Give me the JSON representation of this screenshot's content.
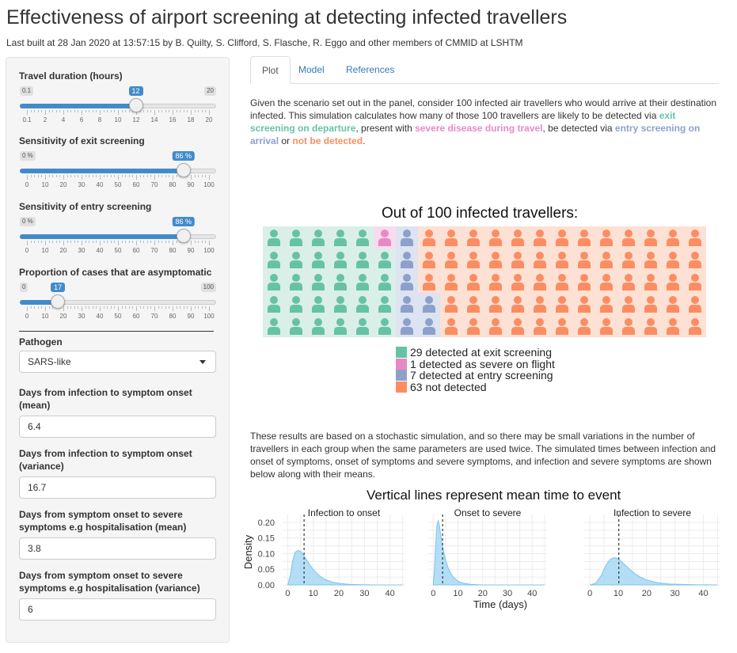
{
  "page": {
    "title": "Effectiveness of airport screening at detecting infected travellers",
    "subtitle": "Last built at 28 Jan 2020 at 13:57:15 by B. Quilty, S. Clifford, S. Flasche, R. Eggo and other members of CMMID at LSHTM"
  },
  "sidebar": {
    "sliders": [
      {
        "label": "Travel duration (hours)",
        "min": 0.1,
        "max": 20,
        "value": 12,
        "value_label": "12",
        "min_label": "0.1",
        "max_label": "20",
        "tick_labels": [
          "0.1",
          "2",
          "4",
          "6",
          "8",
          "10",
          "12",
          "14",
          "16",
          "18",
          "20"
        ]
      },
      {
        "label": "Sensitivity of exit screening",
        "min": 0,
        "max": 100,
        "value": 86,
        "value_label": "86 %",
        "min_label": "0 %",
        "max_label": "",
        "tick_labels": [
          "0",
          "10",
          "20",
          "30",
          "40",
          "50",
          "60",
          "70",
          "80",
          "90",
          "100"
        ]
      },
      {
        "label": "Sensitivity of entry screening",
        "min": 0,
        "max": 100,
        "value": 86,
        "value_label": "86 %",
        "min_label": "0 %",
        "max_label": "",
        "tick_labels": [
          "0",
          "10",
          "20",
          "30",
          "40",
          "50",
          "60",
          "70",
          "80",
          "90",
          "100"
        ]
      },
      {
        "label": "Proportion of cases that are asymptomatic",
        "min": 0,
        "max": 100,
        "value": 17,
        "value_label": "17",
        "min_label": "0",
        "max_label": "100",
        "tick_labels": [
          "0",
          "10",
          "20",
          "30",
          "40",
          "50",
          "60",
          "70",
          "80",
          "90",
          "100"
        ]
      }
    ],
    "pathogen_label": "Pathogen",
    "pathogen_value": "SARS-like",
    "inputs": [
      {
        "label": "Days from infection to symptom onset (mean)",
        "value": "6.4"
      },
      {
        "label": "Days from infection to symptom onset (variance)",
        "value": "16.7"
      },
      {
        "label": "Days from symptom onset to severe symptoms e.g hospitalisation (mean)",
        "value": "3.8"
      },
      {
        "label": "Days from symptom onset to severe symptoms e.g hospitalisation (variance)",
        "value": "6"
      }
    ]
  },
  "tabs": [
    {
      "label": "Plot",
      "active": true
    },
    {
      "label": "Model",
      "active": false
    },
    {
      "label": "References",
      "active": false
    }
  ],
  "intro": {
    "t1": "Given the scenario set out in the panel, consider 100 infected air travellers who would arrive at their destination infected. This simulation calculates how many of those 100 travellers are likely to be detected via ",
    "exit": "exit screening on departure",
    "t2": ", present with ",
    "severe": "severe disease during travel",
    "t3": ", be detected via ",
    "entry": "entry screening on arrival",
    "t4": " or ",
    "not": "not be detected",
    "t5": "."
  },
  "waffle": {
    "title": "Out of 100 infected travellers:",
    "rows": 5,
    "groups": [
      {
        "key": "exit",
        "count": 29,
        "color": "#66c2a5",
        "bg": "#d9efe7",
        "legend": "29 detected at exit screening"
      },
      {
        "key": "severe",
        "count": 1,
        "color": "#e78ac3",
        "bg": "#f8dcee",
        "legend": "1 detected as severe on flight"
      },
      {
        "key": "entry",
        "count": 7,
        "color": "#8da0cb",
        "bg": "#dde3f0",
        "legend": "7 detected at entry screening"
      },
      {
        "key": "not",
        "count": 63,
        "color": "#fc8d62",
        "bg": "#fde1d4",
        "legend": "63 not detected"
      }
    ]
  },
  "results_text": "These results are based on a stochastic simulation, and so there may be small variations in the number of travellers in each group when the same parameters are used twice. The simulated times between infection and onset of symptoms, onset of symptoms and severe symptoms, and infection and severe symptoms are shown below along with their means.",
  "chart_data": {
    "type": "area",
    "title": "Vertical lines represent mean time to event",
    "xlabel": "Time (days)",
    "ylabel": "Density",
    "xlim": [
      -2,
      46
    ],
    "ylim": [
      0,
      0.21
    ],
    "x_ticks": [
      0,
      10,
      20,
      30,
      40
    ],
    "y_ticks": [
      0,
      0.05,
      0.1,
      0.15,
      0.2
    ],
    "y_tick_labels": [
      "0.00",
      "0.05",
      "0.10",
      "0.15",
      "0.20"
    ],
    "fill_color": "#a6d8f5",
    "line_color": "#7cc3ee",
    "grid": true,
    "panels": [
      {
        "name": "Infection to onset",
        "mean": 6.4,
        "x": [
          0,
          1,
          2,
          3,
          4,
          5,
          6,
          7,
          8,
          9,
          10,
          12,
          14,
          16,
          18,
          20,
          24,
          28,
          35,
          45
        ],
        "y": [
          0,
          0.03,
          0.08,
          0.105,
          0.11,
          0.108,
          0.098,
          0.085,
          0.072,
          0.06,
          0.049,
          0.032,
          0.02,
          0.013,
          0.008,
          0.005,
          0.002,
          0.001,
          0,
          0
        ]
      },
      {
        "name": "Onset to severe",
        "mean": 3.8,
        "x": [
          0,
          0.5,
          1,
          1.5,
          2,
          2.5,
          3,
          4,
          5,
          6,
          7,
          8,
          10,
          12,
          15,
          20,
          30,
          45
        ],
        "y": [
          0,
          0.05,
          0.13,
          0.19,
          0.205,
          0.19,
          0.16,
          0.115,
          0.08,
          0.055,
          0.038,
          0.026,
          0.012,
          0.006,
          0.002,
          0,
          0,
          0
        ]
      },
      {
        "name": "Infection to severe",
        "mean": 10.2,
        "x": [
          0,
          2,
          4,
          5,
          6,
          7,
          8,
          9,
          10,
          11,
          12,
          14,
          16,
          18,
          20,
          24,
          28,
          35,
          45
        ],
        "y": [
          0,
          0.005,
          0.03,
          0.05,
          0.068,
          0.08,
          0.086,
          0.087,
          0.083,
          0.076,
          0.067,
          0.05,
          0.035,
          0.024,
          0.016,
          0.007,
          0.003,
          0.001,
          0
        ]
      }
    ]
  }
}
